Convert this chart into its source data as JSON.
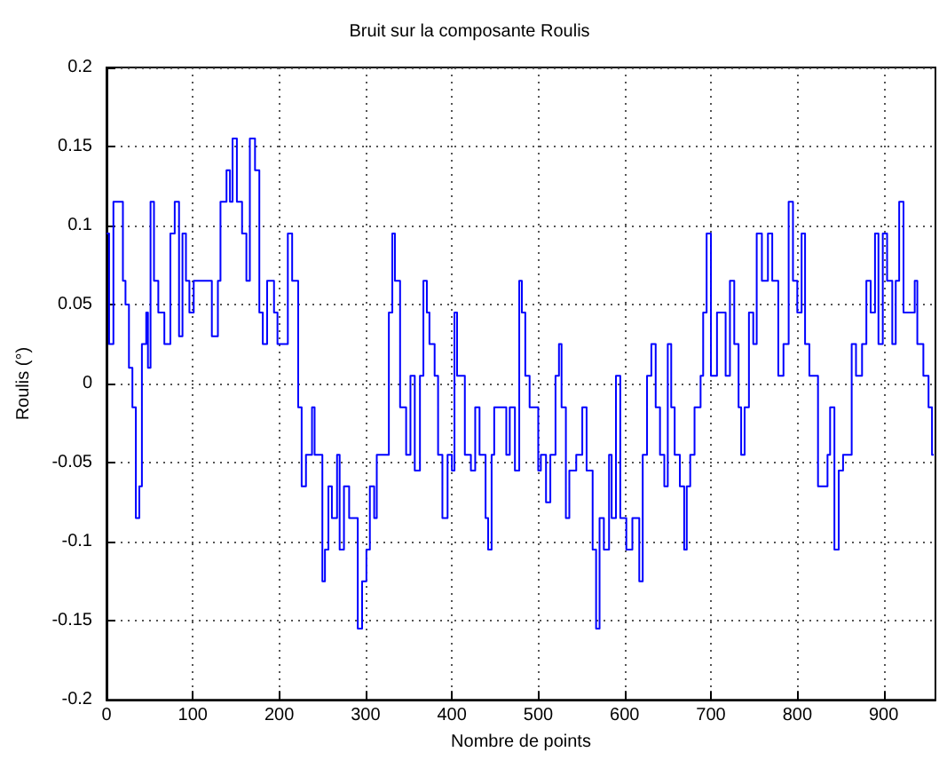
{
  "chart_data": {
    "type": "step",
    "title": "Bruit sur la composante Roulis",
    "xlabel": "Nombre de points",
    "ylabel": "Roulis (°)",
    "x": [
      0,
      3,
      8,
      15,
      19,
      22,
      26,
      30,
      34,
      38,
      41,
      46,
      48,
      51,
      55,
      60,
      67,
      74,
      79,
      84,
      88,
      92,
      96,
      101,
      115,
      122,
      129,
      132,
      139,
      143,
      146,
      151,
      157,
      162,
      166,
      172,
      177,
      181,
      186,
      194,
      198,
      205,
      210,
      215,
      222,
      226,
      231,
      238,
      241,
      250,
      253,
      257,
      261,
      267,
      270,
      275,
      281,
      291,
      296,
      301,
      305,
      310,
      313,
      323,
      327,
      331,
      334,
      340,
      347,
      352,
      357,
      363,
      367,
      371,
      374,
      380,
      384,
      389,
      395,
      400,
      403,
      406,
      412,
      415,
      422,
      427,
      432,
      439,
      442,
      446,
      449,
      456,
      463,
      467,
      473,
      478,
      481,
      485,
      490,
      495,
      500,
      503,
      509,
      514,
      520,
      524,
      527,
      532,
      536,
      544,
      551,
      556,
      563,
      567,
      571,
      576,
      582,
      585,
      590,
      595,
      602,
      609,
      617,
      621,
      626,
      631,
      636,
      641,
      646,
      650,
      654,
      658,
      664,
      669,
      672,
      676,
      681,
      688,
      691,
      695,
      700,
      707,
      713,
      717,
      722,
      727,
      732,
      735,
      739,
      744,
      749,
      753,
      759,
      766,
      771,
      778,
      784,
      790,
      795,
      800,
      805,
      809,
      814,
      820,
      824,
      831,
      835,
      838,
      843,
      848,
      853,
      858,
      863,
      868,
      875,
      880,
      885,
      890,
      894,
      899,
      904,
      910,
      914,
      918,
      923,
      933,
      936,
      939,
      946,
      952,
      956,
      958
    ],
    "series": [
      {
        "color": "#0000ff",
        "values": [
          0.095,
          0.025,
          0.115,
          0.115,
          0.065,
          0.05,
          0.01,
          -0.015,
          -0.085,
          -0.065,
          0.025,
          0.045,
          0.01,
          0.115,
          0.065,
          0.045,
          0.025,
          0.095,
          0.115,
          0.03,
          0.095,
          0.065,
          0.045,
          0.065,
          0.065,
          0.03,
          0.065,
          0.115,
          0.135,
          0.115,
          0.155,
          0.115,
          0.095,
          0.065,
          0.155,
          0.135,
          0.045,
          0.025,
          0.065,
          0.045,
          0.025,
          0.025,
          0.095,
          0.065,
          -0.015,
          -0.065,
          -0.045,
          -0.015,
          -0.045,
          -0.125,
          -0.105,
          -0.065,
          -0.085,
          -0.045,
          -0.105,
          -0.065,
          -0.085,
          -0.155,
          -0.125,
          -0.105,
          -0.065,
          -0.085,
          -0.045,
          -0.045,
          0.045,
          0.095,
          0.065,
          -0.015,
          -0.045,
          0.005,
          -0.055,
          0.005,
          0.065,
          0.045,
          0.025,
          0.005,
          -0.045,
          -0.085,
          -0.045,
          -0.055,
          0.045,
          0.005,
          0.005,
          -0.045,
          -0.055,
          -0.015,
          -0.045,
          -0.085,
          -0.105,
          -0.045,
          -0.015,
          -0.015,
          -0.045,
          -0.015,
          -0.055,
          0.065,
          0.045,
          0.005,
          -0.015,
          -0.015,
          -0.055,
          -0.045,
          -0.075,
          -0.045,
          0.005,
          0.025,
          -0.015,
          -0.085,
          -0.055,
          -0.045,
          -0.015,
          -0.055,
          -0.105,
          -0.155,
          -0.085,
          -0.105,
          -0.045,
          -0.085,
          0.005,
          -0.085,
          -0.105,
          -0.085,
          -0.125,
          -0.045,
          0.005,
          0.025,
          -0.015,
          -0.045,
          -0.065,
          0.025,
          -0.015,
          -0.045,
          -0.065,
          -0.105,
          -0.065,
          -0.045,
          -0.015,
          0.005,
          0.045,
          0.095,
          0.005,
          0.045,
          0.045,
          0.005,
          0.065,
          0.025,
          -0.015,
          -0.045,
          -0.015,
          0.045,
          0.025,
          0.095,
          0.065,
          0.095,
          0.065,
          0.005,
          0.025,
          0.115,
          0.065,
          0.045,
          0.095,
          0.025,
          0.005,
          0.005,
          -0.065,
          -0.065,
          -0.045,
          -0.015,
          -0.105,
          -0.055,
          -0.045,
          -0.045,
          0.025,
          0.005,
          0.025,
          0.065,
          0.045,
          0.095,
          0.025,
          0.095,
          0.065,
          0.025,
          0.065,
          0.115,
          0.045,
          0.045,
          0.065,
          0.025,
          0.005,
          -0.015,
          -0.045,
          -0.045
        ]
      }
    ],
    "xlim": [
      0,
      960
    ],
    "xticks": [
      0,
      100,
      200,
      300,
      400,
      500,
      600,
      700,
      800,
      900
    ],
    "ylim": [
      -0.2,
      0.2
    ],
    "yticks": [
      -0.2,
      -0.15,
      -0.1,
      -0.05,
      0,
      0.05,
      0.1,
      0.15,
      0.2
    ],
    "grid": true,
    "line_style": "solid",
    "marker": "none"
  }
}
